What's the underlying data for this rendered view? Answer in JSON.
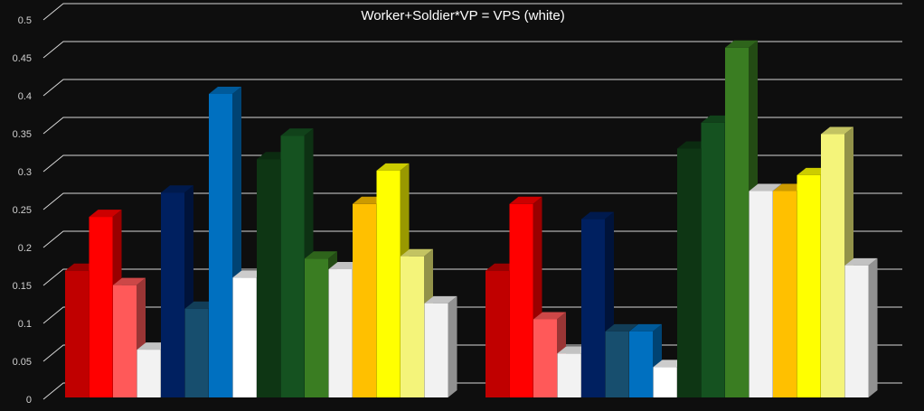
{
  "chart_data": {
    "type": "bar3d",
    "title": "Worker+Soldier*VP = VPS (white)",
    "categories": [
      null,
      null
    ],
    "ylim": [
      0,
      0.5
    ],
    "yticks": [
      0,
      0.05,
      0.1,
      0.15,
      0.2,
      0.25,
      0.3,
      0.35,
      0.4,
      0.45,
      0.5
    ],
    "grid": true,
    "series": [
      {
        "color": "#c00000",
        "values": [
          0.167,
          0.167
        ]
      },
      {
        "color": "#ff0000",
        "values": [
          0.238,
          0.255
        ]
      },
      {
        "color": "#ff5959",
        "values": [
          0.148,
          0.103
        ]
      },
      {
        "color": "#f2f2f2",
        "values": [
          0.063,
          0.058
        ]
      },
      {
        "color": "#002060",
        "values": [
          0.27,
          0.235
        ]
      },
      {
        "color": "#174e6e",
        "values": [
          0.117,
          0.087
        ]
      },
      {
        "color": "#0070c0",
        "values": [
          0.4,
          0.087
        ]
      },
      {
        "color": "#ffffff",
        "values": [
          0.158,
          0.04
        ]
      },
      {
        "color": "#0e3614",
        "values": [
          0.314,
          0.328
        ]
      },
      {
        "color": "#155220",
        "values": [
          0.345,
          0.362
        ]
      },
      {
        "color": "#3a7d22",
        "values": [
          0.183,
          0.461
        ]
      },
      {
        "color": "#f2f2f2",
        "values": [
          0.169,
          0.272
        ]
      },
      {
        "color": "#ffc000",
        "values": [
          0.255,
          0.272
        ]
      },
      {
        "color": "#ffff00",
        "values": [
          0.299,
          0.293
        ]
      },
      {
        "color": "#f4f47a",
        "values": [
          0.186,
          0.347
        ]
      },
      {
        "color": "#f2f2f2",
        "values": [
          0.124,
          0.174
        ]
      }
    ]
  }
}
